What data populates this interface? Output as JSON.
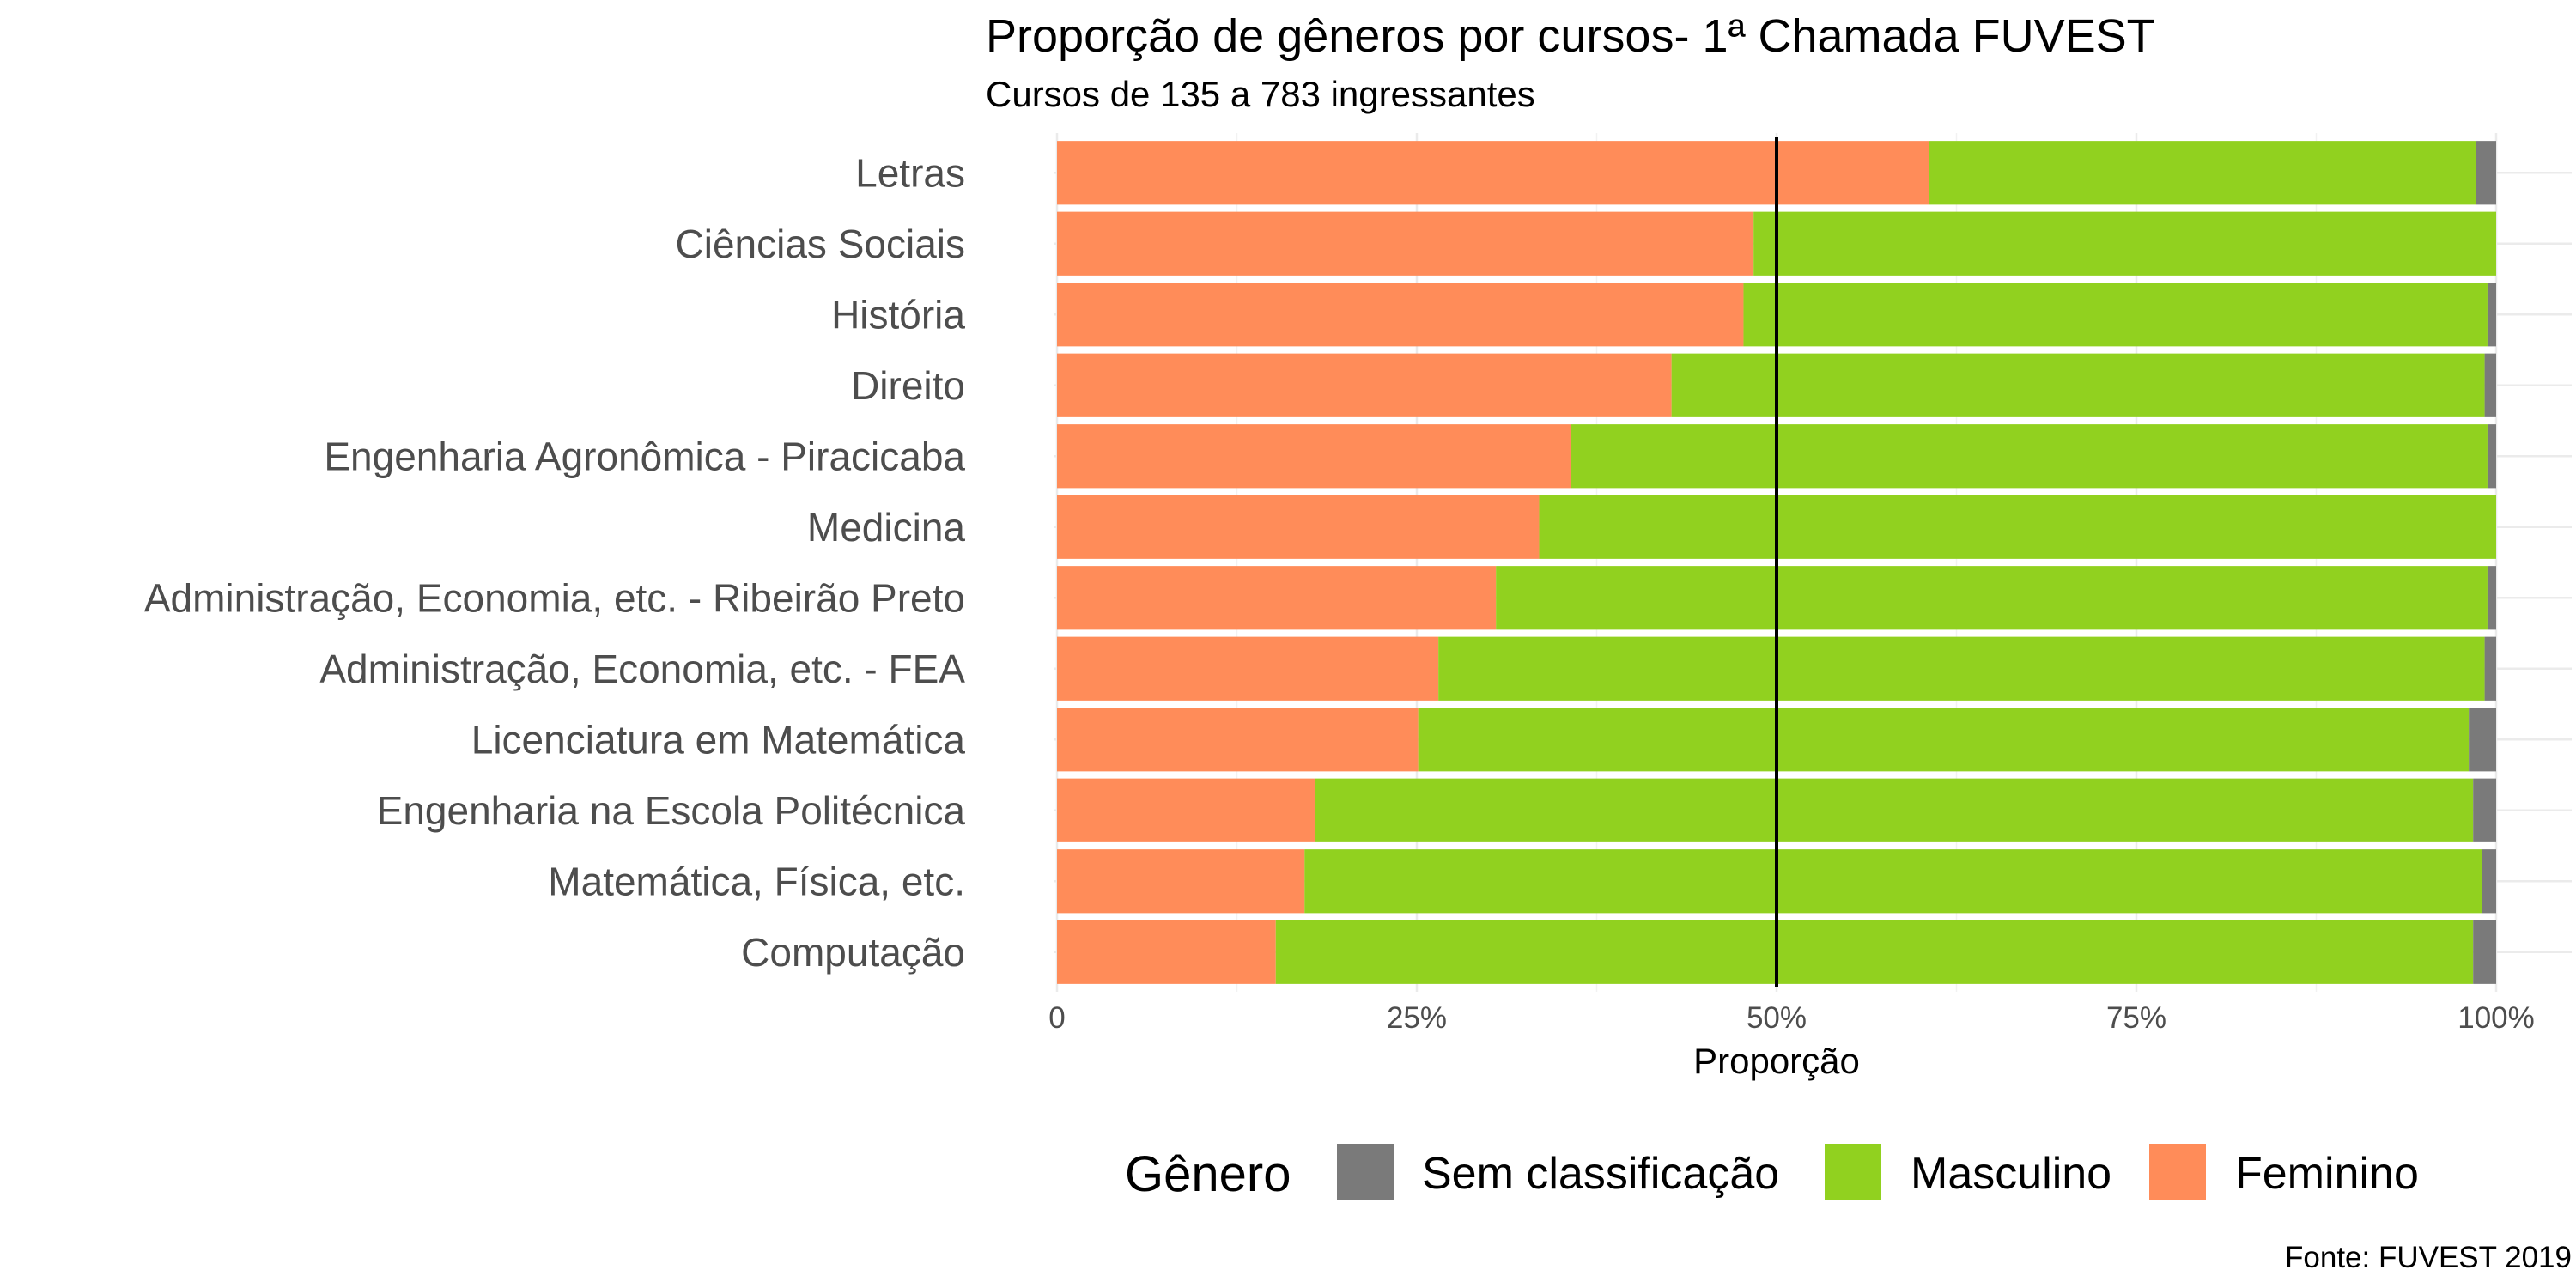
{
  "chart_data": {
    "type": "bar",
    "orientation": "horizontal",
    "stacked": true,
    "title": "Proporção de gêneros por cursos- 1ª Chamada FUVEST",
    "subtitle": "Cursos de 135 a 783 ingressantes",
    "xlabel": "Proporção",
    "ylabel": "",
    "caption": "Fonte: FUVEST 2019",
    "xlim": [
      0,
      1
    ],
    "x_ticks": [
      {
        "value": 0,
        "label": "0"
      },
      {
        "value": 0.25,
        "label": "25%"
      },
      {
        "value": 0.5,
        "label": "50%"
      },
      {
        "value": 0.75,
        "label": "75%"
      },
      {
        "value": 1,
        "label": "100%"
      }
    ],
    "reference_line": 0.5,
    "categories": [
      "Letras",
      "Ciências Sociais",
      "História",
      "Direito",
      "Engenharia Agronômica - Piracicaba",
      "Medicina",
      "Administração, Economia, etc. - Ribeirão Preto",
      "Administração, Economia, etc. - FEA",
      "Licenciatura em Matemática",
      "Engenharia na Escola Politécnica",
      "Matemática, Física, etc.",
      "Computação"
    ],
    "series": [
      {
        "name": "Feminino",
        "color": "#ff8c59",
        "values": [
          0.606,
          0.484,
          0.477,
          0.427,
          0.357,
          0.335,
          0.305,
          0.265,
          0.251,
          0.179,
          0.172,
          0.152
        ]
      },
      {
        "name": "Masculino",
        "color": "#91d11f",
        "values": [
          0.38,
          0.516,
          0.517,
          0.565,
          0.637,
          0.665,
          0.689,
          0.727,
          0.73,
          0.805,
          0.818,
          0.832
        ]
      },
      {
        "name": "Sem classificação",
        "color": "#7a7a7a",
        "values": [
          0.014,
          0.0,
          0.006,
          0.008,
          0.006,
          0.0,
          0.006,
          0.008,
          0.019,
          0.016,
          0.01,
          0.016
        ]
      }
    ],
    "legend": {
      "title": "Gênero",
      "position": "bottom",
      "order": [
        "Sem classificação",
        "Masculino",
        "Feminino"
      ]
    },
    "grid": true
  }
}
